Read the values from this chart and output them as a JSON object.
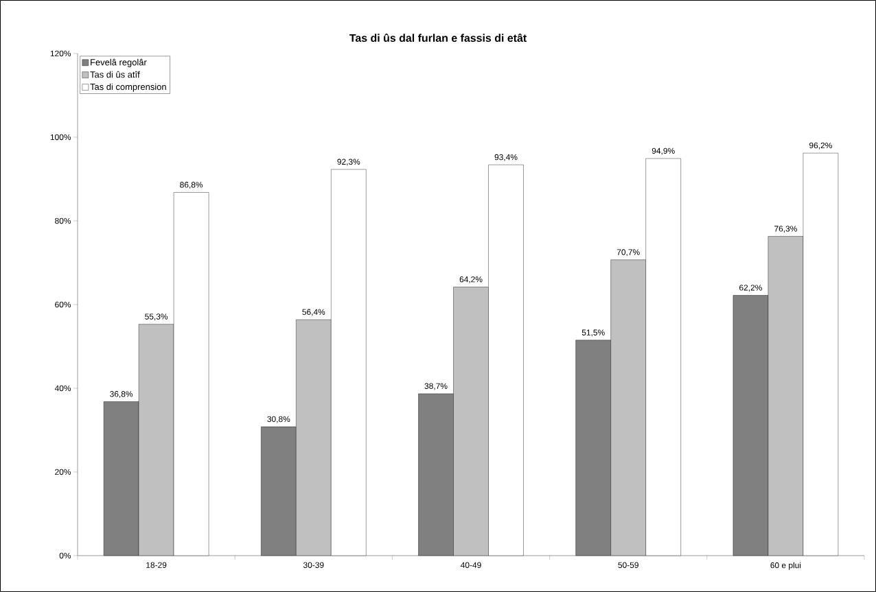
{
  "chart_data": {
    "type": "bar",
    "title": "Tas di ûs dal furlan e fassis di etât",
    "categories": [
      "18-29",
      "30-39",
      "40-49",
      "50-59",
      "60 e plui"
    ],
    "series": [
      {
        "name": "Fevelâ regolâr",
        "color": "#808080",
        "values": [
          36.8,
          30.8,
          38.7,
          51.5,
          62.2
        ],
        "value_labels": [
          "36,8%",
          "30,8%",
          "38,7%",
          "51,5%",
          "62,2%"
        ]
      },
      {
        "name": "Tas di ûs atîf",
        "color": "#c0c0c0",
        "values": [
          55.3,
          56.4,
          64.2,
          70.7,
          76.3
        ],
        "value_labels": [
          "55,3%",
          "56,4%",
          "64,2%",
          "70,7%",
          "76,3%"
        ]
      },
      {
        "name": "Tas di comprension",
        "color": "#ffffff",
        "values": [
          86.8,
          92.3,
          93.4,
          94.9,
          96.2
        ],
        "value_labels": [
          "86,8%",
          "92,3%",
          "93,4%",
          "94,9%",
          "96,2%"
        ]
      }
    ],
    "ylim": [
      0,
      120
    ],
    "yticks": [
      {
        "value": 0,
        "label": "0%"
      },
      {
        "value": 20,
        "label": "20%"
      },
      {
        "value": 40,
        "label": "40%"
      },
      {
        "value": 60,
        "label": "60%"
      },
      {
        "value": 80,
        "label": "80%"
      },
      {
        "value": 100,
        "label": "100%"
      },
      {
        "value": 120,
        "label": "120%"
      }
    ],
    "legend": "top left",
    "grid": false
  }
}
